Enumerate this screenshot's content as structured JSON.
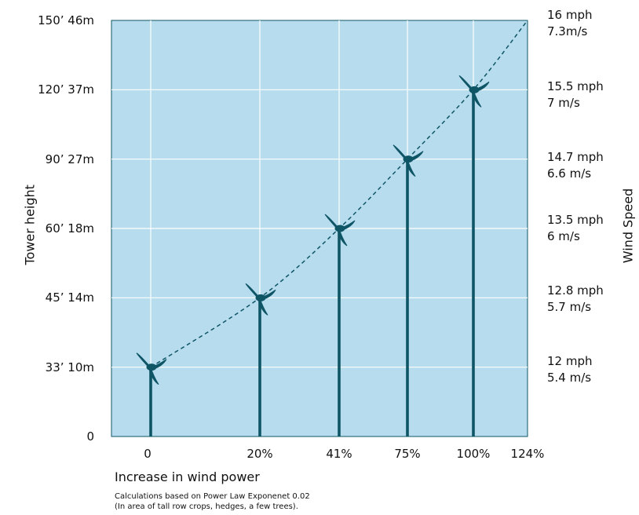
{
  "chart_data": {
    "type": "line",
    "title": "",
    "xlabel": "Increase in wind power",
    "ylabel": "Tower height",
    "y2label": "Wind Speed",
    "yticks": [
      "0",
      "33’ 10m",
      "45’ 14m",
      "60’ 18m",
      "90’ 27m",
      "120’ 37m",
      "150’ 46m"
    ],
    "xticks": [
      "0",
      "20%",
      "41%",
      "75%",
      "100%",
      "124%"
    ],
    "wind_speed_labels": [
      {
        "mph": "16 mph",
        "ms": "7.3m/s"
      },
      {
        "mph": "15.5 mph",
        "ms": "7 m/s"
      },
      {
        "mph": "14.7 mph",
        "ms": "6.6 m/s"
      },
      {
        "mph": "13.5 mph",
        "ms": "6 m/s"
      },
      {
        "mph": "12.8 mph",
        "ms": "5.7 m/s"
      },
      {
        "mph": "12 mph",
        "ms": "5.4 m/s"
      }
    ],
    "points": [
      {
        "x": "0",
        "tower_height_ft": 33
      },
      {
        "x": "20%",
        "tower_height_ft": 45
      },
      {
        "x": "41%",
        "tower_height_ft": 60
      },
      {
        "x": "75%",
        "tower_height_ft": 90
      },
      {
        "x": "100%",
        "tower_height_ft": 120
      },
      {
        "x": "124%",
        "tower_height_ft": 150
      }
    ],
    "turbines_at": [
      "0",
      "20%",
      "41%",
      "75%",
      "100%"
    ],
    "grid": true,
    "colors": {
      "plot_background": "#b6dcee",
      "turbine": "#0e5566",
      "curve": "#0e5566",
      "grid": "#ffffff"
    }
  },
  "footnote": {
    "line1": "Calculations based on Power Law Exponenet 0.02",
    "line2": "(In area of tall row crops, hedges, a few trees)."
  }
}
